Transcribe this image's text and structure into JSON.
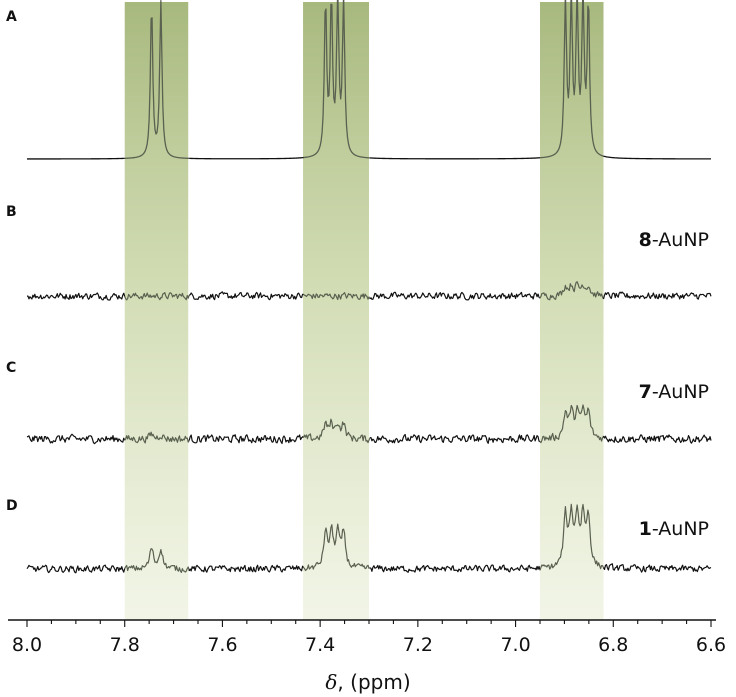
{
  "chart_data": {
    "type": "line",
    "title": "",
    "xlabel_symbol": "δ",
    "xlabel_rest": ", (ppm)",
    "xlim": [
      8.0,
      6.6
    ],
    "x_reversed": true,
    "x_ticks": [
      8.0,
      7.8,
      7.6,
      7.4,
      7.2,
      7.0,
      6.8,
      6.6
    ],
    "x_tick_labels": [
      "8.0",
      "7.8",
      "7.6",
      "7.4",
      "7.2",
      "7.0",
      "6.8",
      "6.6"
    ],
    "grid": false,
    "legend": "none",
    "highlight_regions": [
      {
        "from": 7.8,
        "to": 7.67
      },
      {
        "from": 7.435,
        "to": 7.3
      },
      {
        "from": 6.95,
        "to": 6.82
      }
    ],
    "highlight_color": "#a8bb7c",
    "peak_groups": [
      {
        "center": 7.735,
        "lines": [
          7.745,
          7.726
        ],
        "split": 0.008
      },
      {
        "center": 7.371,
        "lines": [
          7.389,
          7.377,
          7.364,
          7.352
        ],
        "split": 0.007
      },
      {
        "center": 6.875,
        "lines": [
          6.898,
          6.886,
          6.874,
          6.862,
          6.851
        ],
        "split": 0.007
      }
    ],
    "series": [
      {
        "panel": "A",
        "sample": "",
        "sample_number": "",
        "sample_suffix": "",
        "type": "reference",
        "relative_intensity": [
          1.0,
          1.0,
          1.0
        ],
        "noise": 0.0
      },
      {
        "panel": "B",
        "sample": "8-AuNP",
        "sample_number": "8",
        "sample_suffix": "-AuNP",
        "relative_intensity": [
          0.0,
          0.0,
          0.06
        ],
        "noise": 0.03
      },
      {
        "panel": "C",
        "sample": "7-AuNP",
        "sample_number": "7",
        "sample_suffix": "-AuNP",
        "relative_intensity": [
          0.03,
          0.09,
          0.16
        ],
        "noise": 0.035
      },
      {
        "panel": "D",
        "sample": "1-AuNP",
        "sample_number": "1",
        "sample_suffix": "-AuNP",
        "relative_intensity": [
          0.13,
          0.22,
          0.32
        ],
        "noise": 0.03
      }
    ],
    "line_color": "#111111",
    "in_region_line_color": "#5a6150"
  }
}
